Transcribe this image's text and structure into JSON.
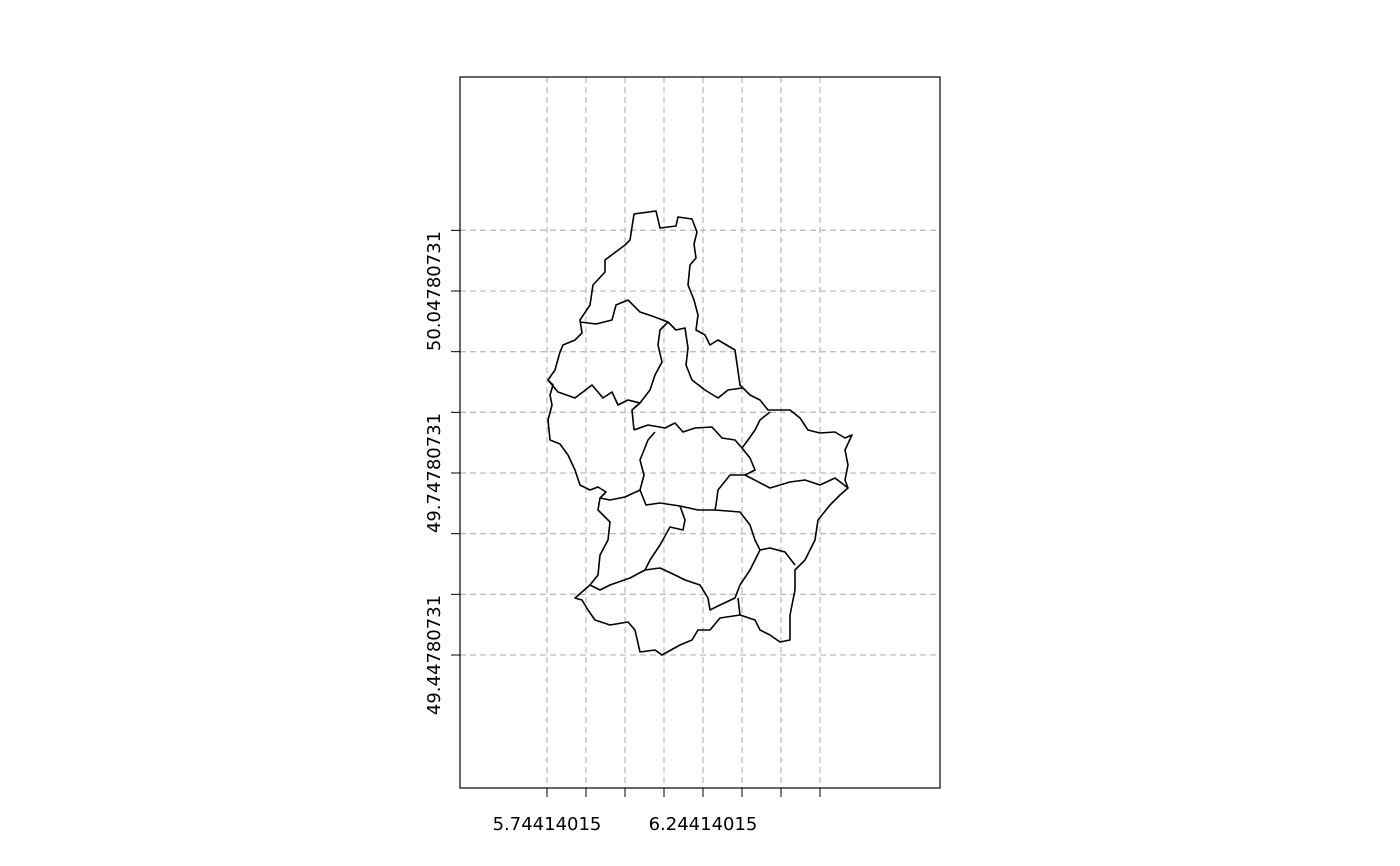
{
  "chart_data": {
    "type": "map",
    "xlim": [
      5.46529,
      7.00376
    ],
    "ylim": [
      49.22858,
      50.40056
    ],
    "xticks": [
      5.74414015,
      {
        "value": 5.86914015,
        "label": null
      },
      {
        "value": 5.99414015,
        "label": null
      },
      {
        "value": 6.11914015,
        "label": null
      },
      6.24414015,
      {
        "value": 6.36914015,
        "label": null
      },
      {
        "value": 6.49414015,
        "label": null
      },
      {
        "value": 6.61914015,
        "label": null
      }
    ],
    "yticks": [
      49.44780731,
      {
        "value": 49.54780731,
        "label": null
      },
      {
        "value": 49.64780731,
        "label": null
      },
      49.74780731,
      {
        "value": 49.84780731,
        "label": null
      },
      {
        "value": 49.94780731,
        "label": null
      },
      50.04780731,
      {
        "value": 50.14780731,
        "label": null
      }
    ],
    "grid": true
  }
}
